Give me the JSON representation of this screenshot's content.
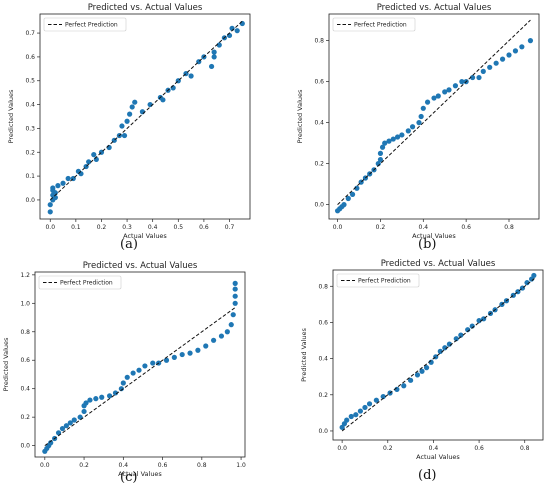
{
  "chart_data": [
    {
      "id": "a",
      "caption": "(a)",
      "type": "scatter",
      "title": "Predicted vs. Actual Values",
      "xlabel": "Actual Values",
      "ylabel": "Predicted Values",
      "xlim": [
        -0.04,
        0.78
      ],
      "ylim": [
        -0.08,
        0.78
      ],
      "xticks": [
        0.0,
        0.1,
        0.2,
        0.3,
        0.4,
        0.5,
        0.6,
        0.7
      ],
      "yticks": [
        0.0,
        0.1,
        0.2,
        0.3,
        0.4,
        0.5,
        0.6,
        0.7
      ],
      "tick_labels_x": [
        "0.0",
        "0.1",
        "0.2",
        "0.3",
        "0.4",
        "0.5",
        "0.6",
        "0.7"
      ],
      "tick_labels_y": [
        "0.0",
        "0.1",
        "0.2",
        "0.3",
        "0.4",
        "0.5",
        "0.6",
        "0.7"
      ],
      "legend": "Perfect Prediction",
      "legend_position": "top-left",
      "line": [
        0,
        0.75
      ],
      "points": [
        [
          0.0,
          -0.05
        ],
        [
          0.0,
          -0.02
        ],
        [
          0.01,
          0.0
        ],
        [
          0.01,
          0.02
        ],
        [
          0.01,
          0.04
        ],
        [
          0.01,
          0.05
        ],
        [
          0.02,
          0.01
        ],
        [
          0.02,
          0.03
        ],
        [
          0.03,
          0.06
        ],
        [
          0.05,
          0.07
        ],
        [
          0.07,
          0.09
        ],
        [
          0.09,
          0.09
        ],
        [
          0.11,
          0.12
        ],
        [
          0.12,
          0.11
        ],
        [
          0.14,
          0.14
        ],
        [
          0.15,
          0.16
        ],
        [
          0.17,
          0.19
        ],
        [
          0.18,
          0.17
        ],
        [
          0.2,
          0.2
        ],
        [
          0.23,
          0.22
        ],
        [
          0.25,
          0.25
        ],
        [
          0.27,
          0.27
        ],
        [
          0.28,
          0.31
        ],
        [
          0.29,
          0.27
        ],
        [
          0.3,
          0.33
        ],
        [
          0.31,
          0.36
        ],
        [
          0.32,
          0.39
        ],
        [
          0.33,
          0.41
        ],
        [
          0.36,
          0.37
        ],
        [
          0.39,
          0.4
        ],
        [
          0.43,
          0.43
        ],
        [
          0.44,
          0.42
        ],
        [
          0.46,
          0.46
        ],
        [
          0.48,
          0.47
        ],
        [
          0.5,
          0.5
        ],
        [
          0.53,
          0.53
        ],
        [
          0.55,
          0.52
        ],
        [
          0.58,
          0.58
        ],
        [
          0.6,
          0.6
        ],
        [
          0.63,
          0.56
        ],
        [
          0.64,
          0.6
        ],
        [
          0.64,
          0.62
        ],
        [
          0.66,
          0.65
        ],
        [
          0.68,
          0.68
        ],
        [
          0.7,
          0.69
        ],
        [
          0.71,
          0.72
        ],
        [
          0.73,
          0.71
        ],
        [
          0.75,
          0.74
        ]
      ]
    },
    {
      "id": "b",
      "caption": "(b)",
      "type": "scatter",
      "title": "Predicted vs. Actual Values",
      "xlabel": "Actual Values",
      "ylabel": "Predicted Values",
      "xlim": [
        -0.04,
        0.94
      ],
      "ylim": [
        -0.07,
        0.93
      ],
      "xticks": [
        0.0,
        0.2,
        0.4,
        0.6,
        0.8
      ],
      "yticks": [
        0.0,
        0.2,
        0.4,
        0.6,
        0.8
      ],
      "tick_labels_x": [
        "0.0",
        "0.2",
        "0.4",
        "0.6",
        "0.8"
      ],
      "tick_labels_y": [
        "0.0",
        "0.2",
        "0.4",
        "0.6",
        "0.8"
      ],
      "legend": "Perfect Prediction",
      "legend_position": "top-left",
      "line": [
        0,
        0.9
      ],
      "points": [
        [
          0.0,
          -0.03
        ],
        [
          0.01,
          -0.02
        ],
        [
          0.02,
          -0.01
        ],
        [
          0.03,
          0.0
        ],
        [
          0.05,
          0.03
        ],
        [
          0.07,
          0.05
        ],
        [
          0.09,
          0.08
        ],
        [
          0.11,
          0.11
        ],
        [
          0.13,
          0.13
        ],
        [
          0.15,
          0.15
        ],
        [
          0.17,
          0.17
        ],
        [
          0.19,
          0.2
        ],
        [
          0.2,
          0.22
        ],
        [
          0.2,
          0.25
        ],
        [
          0.21,
          0.28
        ],
        [
          0.22,
          0.3
        ],
        [
          0.24,
          0.31
        ],
        [
          0.26,
          0.32
        ],
        [
          0.28,
          0.33
        ],
        [
          0.3,
          0.34
        ],
        [
          0.33,
          0.36
        ],
        [
          0.35,
          0.38
        ],
        [
          0.38,
          0.4
        ],
        [
          0.39,
          0.43
        ],
        [
          0.4,
          0.47
        ],
        [
          0.42,
          0.5
        ],
        [
          0.45,
          0.52
        ],
        [
          0.47,
          0.53
        ],
        [
          0.5,
          0.55
        ],
        [
          0.52,
          0.56
        ],
        [
          0.55,
          0.58
        ],
        [
          0.58,
          0.6
        ],
        [
          0.6,
          0.6
        ],
        [
          0.63,
          0.62
        ],
        [
          0.66,
          0.62
        ],
        [
          0.68,
          0.65
        ],
        [
          0.71,
          0.67
        ],
        [
          0.74,
          0.69
        ],
        [
          0.77,
          0.71
        ],
        [
          0.8,
          0.73
        ],
        [
          0.83,
          0.75
        ],
        [
          0.86,
          0.77
        ],
        [
          0.9,
          0.8
        ]
      ]
    },
    {
      "id": "c",
      "caption": "(c)",
      "type": "scatter",
      "title": "Predicted vs. Actual Values",
      "xlabel": "Actual Values",
      "ylabel": "Predicted Values",
      "xlim": [
        -0.05,
        1.02
      ],
      "ylim": [
        -0.08,
        1.22
      ],
      "xticks": [
        0.0,
        0.2,
        0.4,
        0.6,
        0.8,
        1.0
      ],
      "yticks": [
        0.0,
        0.2,
        0.4,
        0.6,
        0.8,
        1.0,
        1.2
      ],
      "tick_labels_x": [
        "0.0",
        "0.2",
        "0.4",
        "0.6",
        "0.8",
        "1.0"
      ],
      "tick_labels_y": [
        "0.0",
        "0.2",
        "0.4",
        "0.6",
        "0.8",
        "1.0",
        "1.2"
      ],
      "legend": "Perfect Prediction",
      "legend_position": "top-left",
      "line": [
        0,
        0.97
      ],
      "points": [
        [
          0.0,
          -0.04
        ],
        [
          0.01,
          -0.02
        ],
        [
          0.02,
          0.0
        ],
        [
          0.03,
          0.02
        ],
        [
          0.05,
          0.05
        ],
        [
          0.07,
          0.09
        ],
        [
          0.09,
          0.12
        ],
        [
          0.11,
          0.14
        ],
        [
          0.13,
          0.16
        ],
        [
          0.15,
          0.18
        ],
        [
          0.18,
          0.2
        ],
        [
          0.2,
          0.24
        ],
        [
          0.2,
          0.28
        ],
        [
          0.21,
          0.3
        ],
        [
          0.23,
          0.32
        ],
        [
          0.26,
          0.33
        ],
        [
          0.29,
          0.34
        ],
        [
          0.33,
          0.35
        ],
        [
          0.36,
          0.37
        ],
        [
          0.39,
          0.4
        ],
        [
          0.4,
          0.44
        ],
        [
          0.42,
          0.48
        ],
        [
          0.45,
          0.51
        ],
        [
          0.48,
          0.53
        ],
        [
          0.51,
          0.56
        ],
        [
          0.55,
          0.58
        ],
        [
          0.58,
          0.58
        ],
        [
          0.62,
          0.6
        ],
        [
          0.66,
          0.62
        ],
        [
          0.7,
          0.64
        ],
        [
          0.74,
          0.65
        ],
        [
          0.78,
          0.67
        ],
        [
          0.82,
          0.7
        ],
        [
          0.86,
          0.74
        ],
        [
          0.9,
          0.77
        ],
        [
          0.93,
          0.8
        ],
        [
          0.95,
          0.85
        ],
        [
          0.96,
          0.92
        ],
        [
          0.97,
          1.0
        ],
        [
          0.97,
          1.05
        ],
        [
          0.97,
          1.1
        ],
        [
          0.97,
          1.14
        ]
      ]
    },
    {
      "id": "d",
      "caption": "(d)",
      "type": "scatter",
      "title": "Predicted vs. Actual Values",
      "xlabel": "Actual Values",
      "ylabel": "Predicted Values",
      "xlim": [
        -0.04,
        0.88
      ],
      "ylim": [
        -0.05,
        0.89
      ],
      "xticks": [
        0.0,
        0.2,
        0.4,
        0.6,
        0.8
      ],
      "yticks": [
        0.0,
        0.2,
        0.4,
        0.6,
        0.8
      ],
      "tick_labels_x": [
        "0.0",
        "0.2",
        "0.4",
        "0.6",
        "0.8"
      ],
      "tick_labels_y": [
        "0.0",
        "0.2",
        "0.4",
        "0.6",
        "0.8"
      ],
      "legend": "Perfect Prediction",
      "legend_position": "top-left",
      "line": [
        0,
        0.85
      ],
      "points": [
        [
          0.0,
          0.02
        ],
        [
          0.01,
          0.04
        ],
        [
          0.02,
          0.06
        ],
        [
          0.04,
          0.08
        ],
        [
          0.06,
          0.09
        ],
        [
          0.08,
          0.11
        ],
        [
          0.1,
          0.13
        ],
        [
          0.12,
          0.15
        ],
        [
          0.15,
          0.17
        ],
        [
          0.18,
          0.19
        ],
        [
          0.21,
          0.21
        ],
        [
          0.24,
          0.23
        ],
        [
          0.27,
          0.25
        ],
        [
          0.3,
          0.28
        ],
        [
          0.33,
          0.31
        ],
        [
          0.35,
          0.33
        ],
        [
          0.37,
          0.35
        ],
        [
          0.39,
          0.38
        ],
        [
          0.41,
          0.41
        ],
        [
          0.43,
          0.44
        ],
        [
          0.45,
          0.46
        ],
        [
          0.47,
          0.48
        ],
        [
          0.5,
          0.51
        ],
        [
          0.52,
          0.53
        ],
        [
          0.55,
          0.56
        ],
        [
          0.57,
          0.58
        ],
        [
          0.6,
          0.61
        ],
        [
          0.62,
          0.62
        ],
        [
          0.65,
          0.65
        ],
        [
          0.67,
          0.67
        ],
        [
          0.7,
          0.7
        ],
        [
          0.72,
          0.72
        ],
        [
          0.75,
          0.75
        ],
        [
          0.77,
          0.77
        ],
        [
          0.79,
          0.79
        ],
        [
          0.81,
          0.82
        ],
        [
          0.83,
          0.84
        ],
        [
          0.84,
          0.86
        ]
      ]
    }
  ]
}
